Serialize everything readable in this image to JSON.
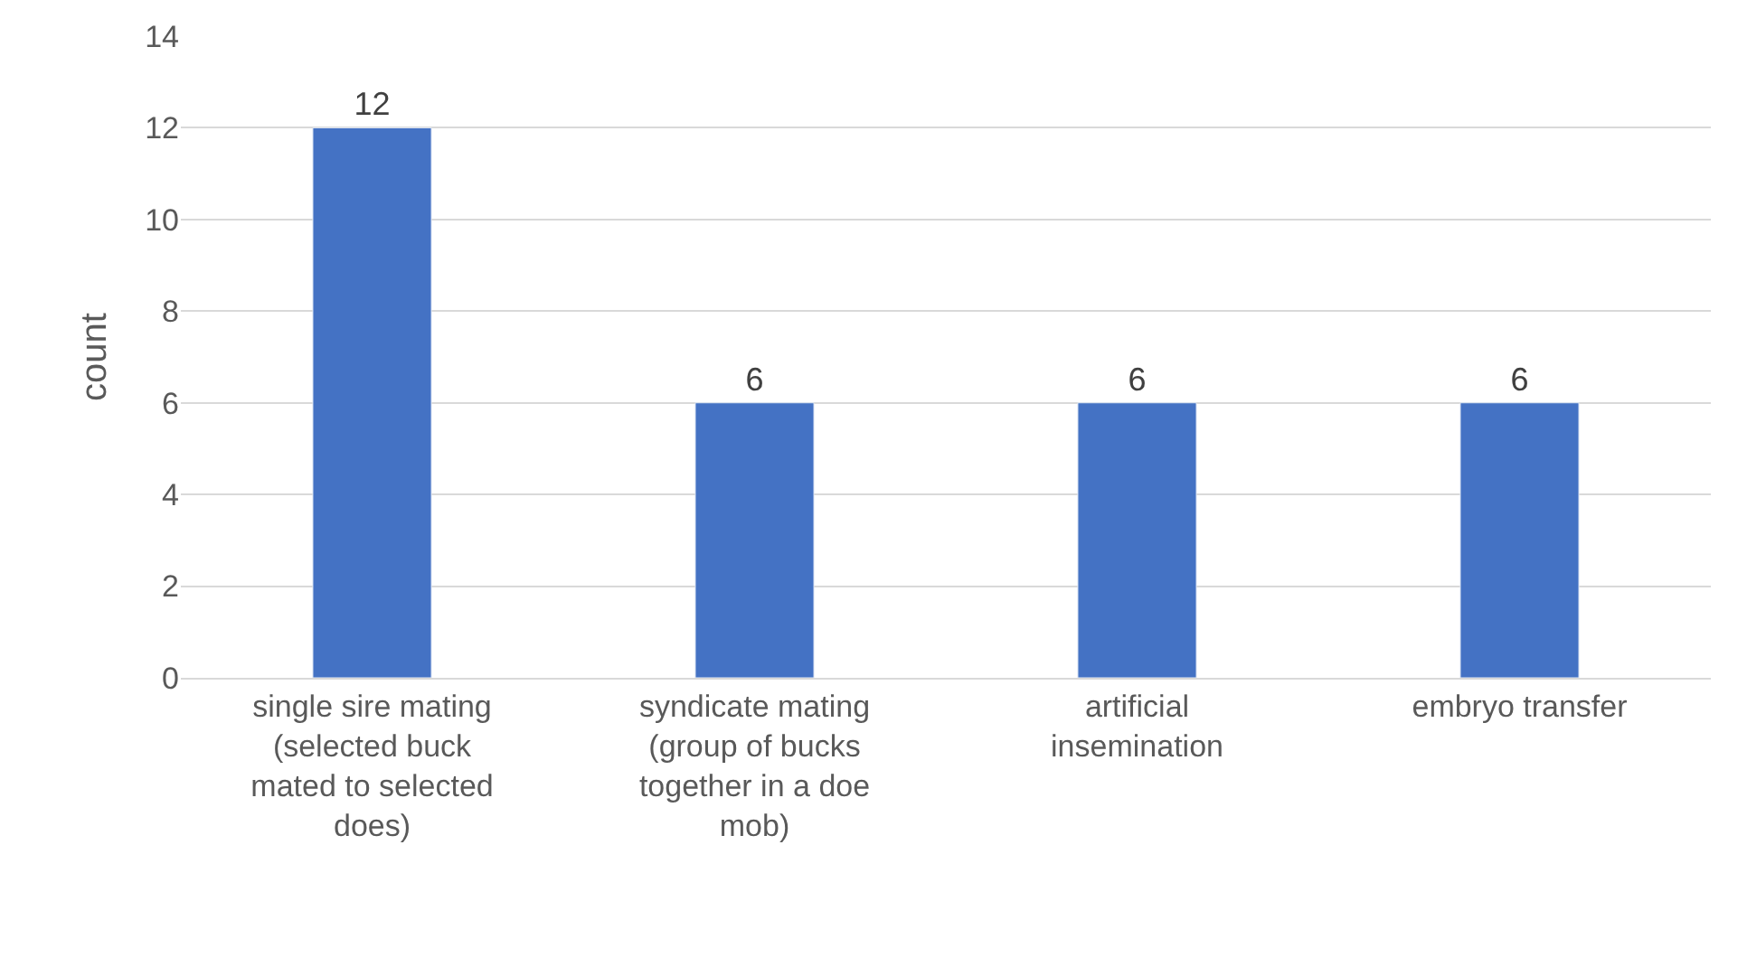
{
  "chart_data": {
    "type": "bar",
    "ylabel": "count",
    "categories": [
      "single sire mating\n(selected buck\nmated to selected\ndoes)",
      "syndicate mating\n(group of bucks\ntogether in a doe\nmob)",
      "artificial\ninsemination",
      "embryo transfer"
    ],
    "values": [
      12,
      6,
      6,
      6
    ],
    "color": "#4472c4",
    "ylim": [
      0,
      14
    ],
    "yticks": [
      0,
      2,
      4,
      6,
      8,
      10,
      12,
      14
    ],
    "grid": "y",
    "data_labels": true
  }
}
